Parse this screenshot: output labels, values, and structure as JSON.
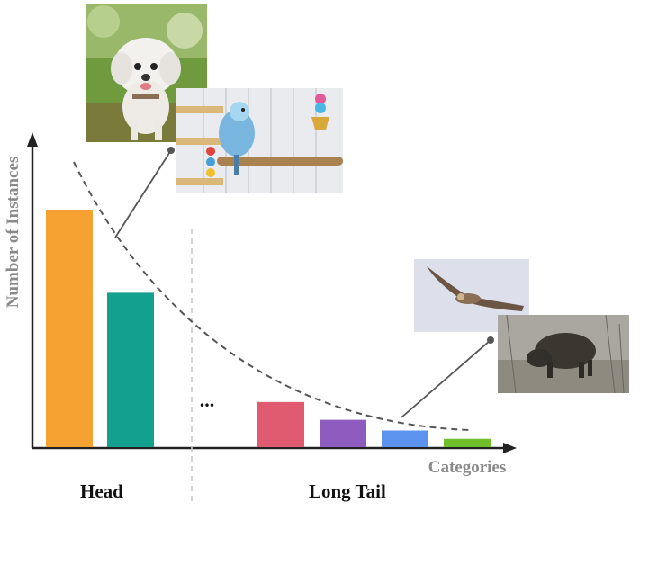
{
  "chart_data": {
    "type": "bar",
    "ylabel": "Number of Instances",
    "xlabel": "Categories",
    "head_values": [
      100,
      65
    ],
    "tail_values": [
      19,
      11.5,
      7,
      3.5
    ],
    "bar_colors": [
      "#f6a233",
      "#13a08f",
      "#e05a70",
      "#8e5bbf",
      "#5b93ee",
      "#6fbf2a"
    ],
    "ymax": 100,
    "ellipsis": "...",
    "trend": "dashed decreasing curve over bars"
  },
  "labels": {
    "head": "Head",
    "long_tail": "Long Tail"
  },
  "images": [
    {
      "name": "dog-photo",
      "subject": "white poodle on grass"
    },
    {
      "name": "parrot-photo",
      "subject": "blue budgie in cage"
    },
    {
      "name": "eagle-photo",
      "subject": "bird of prey in flight"
    },
    {
      "name": "boar-photo",
      "subject": "wild boar in brush"
    }
  ]
}
